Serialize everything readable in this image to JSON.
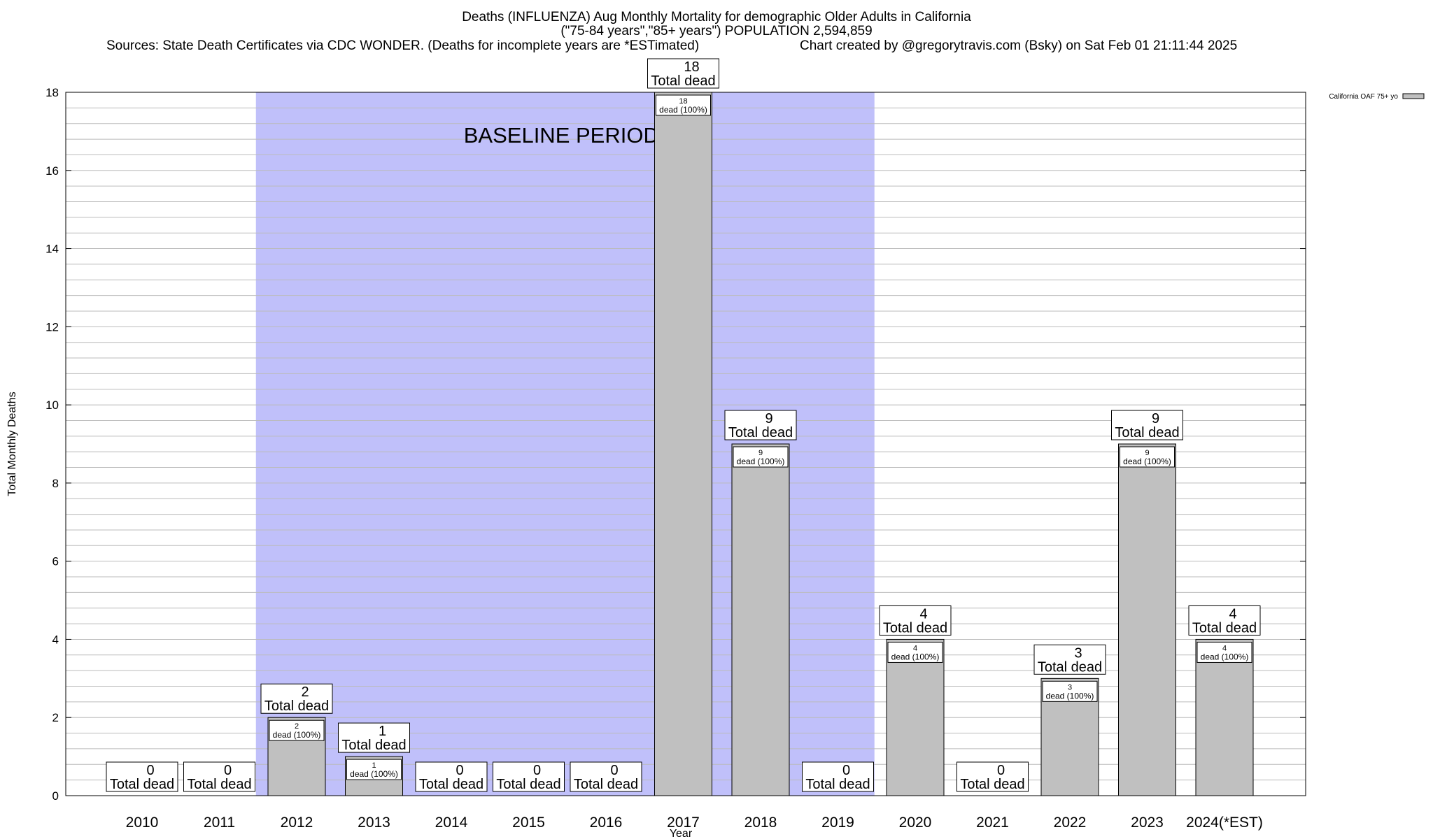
{
  "header": {
    "title_line1": "Deaths (INFLUENZA) Aug Monthly Mortality for demographic Older Adults in California",
    "title_line2": "(\"75-84 years\",\"85+ years\") POPULATION 2,594,859",
    "sources": "Sources: State Death Certificates via CDC WONDER. (Deaths for incomplete years are *ESTimated)",
    "credit": "Chart created by @gregorytravis.com (Bsky) on Sat Feb 01 21:11:44 2025"
  },
  "chart_data": {
    "type": "bar",
    "categories": [
      "2010",
      "2011",
      "2012",
      "2013",
      "2014",
      "2015",
      "2016",
      "2017",
      "2018",
      "2019",
      "2020",
      "2021",
      "2022",
      "2023",
      "2024(*EST)"
    ],
    "series": [
      {
        "name": "California OAF 75+ yo",
        "values": [
          0,
          0,
          2,
          1,
          0,
          0,
          0,
          18,
          9,
          0,
          4,
          0,
          3,
          9,
          4
        ]
      }
    ],
    "xlabel": "Year",
    "ylabel": "Total Monthly Deaths",
    "ylim": [
      0,
      18
    ],
    "yticks": [
      0,
      2,
      4,
      6,
      8,
      10,
      12,
      14,
      16,
      18
    ],
    "grid": true,
    "legend_position": "top-right",
    "total_label_text": "Total dead",
    "bar_label_text": "dead (100%)",
    "shaded_region": {
      "label": "BASELINE PERIOD",
      "from": "2012",
      "to": "2019"
    },
    "colors": {
      "bar": "#c0c0c0",
      "shade": "#c0c0fa",
      "grid": "#bbbbbb"
    }
  }
}
